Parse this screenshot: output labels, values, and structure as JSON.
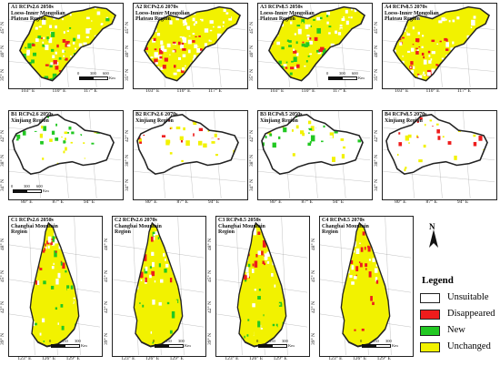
{
  "colors": {
    "unsuitable": "#ffffff",
    "disappeared": "#ee1c1c",
    "new": "#22c822",
    "unchanged": "#f2f200",
    "outline": "#222222"
  },
  "row_a": {
    "lat_labels": [
      "45° N",
      "40° N",
      "35° N"
    ],
    "lon_labels": [
      "103° E",
      "110° E",
      "117° E"
    ],
    "region": "Loess-Inner Mongolian Plateau Region",
    "panels": [
      {
        "id": "A1",
        "scenario": "RCPs2.6 2050s",
        "region_line1": "Loess-Inner Mongolian",
        "region_line2": "Plateau Region",
        "scale_labels": [
          "0",
          "300",
          "600"
        ],
        "scale_unit": "Km"
      },
      {
        "id": "A2",
        "scenario": "RCPs2.6 2070s",
        "region_line1": "Loess-Inner Mongolian",
        "region_line2": "Plateau Region"
      },
      {
        "id": "A3",
        "scenario": "RCPs8.5 2050s",
        "region_line1": "Loess-Inner Mongolian",
        "region_line2": "Plateau Region",
        "scale_labels": [
          "0",
          "300",
          "600"
        ],
        "scale_unit": "Km"
      },
      {
        "id": "A4",
        "scenario": "RCPs8.5 2070s",
        "region_line1": "Loess-Inner Mongolian",
        "region_line2": "Plateau Region"
      }
    ]
  },
  "row_b": {
    "lat_labels": [
      "42° N",
      "38° N",
      "34° N"
    ],
    "lon_labels": [
      "80° E",
      "87° E",
      "94° E"
    ],
    "panels": [
      {
        "id": "B1",
        "scenario": "RCPs2.6 2050s",
        "region_line1": "Xinjiang Region",
        "scale_labels": [
          "0",
          "300",
          "600"
        ],
        "scale_unit": "Km"
      },
      {
        "id": "B2",
        "scenario": "RCPs2.6 2070s",
        "region_line1": "Xinjiang Region"
      },
      {
        "id": "B3",
        "scenario": "RCPs8.5 2050s",
        "region_line1": "Xinjiang Region"
      },
      {
        "id": "B4",
        "scenario": "RCPs8.5 2070s",
        "region_line1": "Xinjiang Region"
      }
    ]
  },
  "row_c": {
    "lat_labels": [
      "48° N",
      "45° N",
      "42° N",
      "39° N"
    ],
    "lon_labels": [
      "123° E",
      "126° E",
      "129° E"
    ],
    "panels": [
      {
        "id": "C1",
        "scenario": "RCPs2.6 2050s",
        "region_line1": "Changbai Mountain",
        "region_line2": "Region",
        "scale_labels": [
          "0",
          "150",
          "300"
        ],
        "scale_unit": "Km"
      },
      {
        "id": "C2",
        "scenario": "RCPs2.6 2070s",
        "region_line1": "Changbai Mountain",
        "region_line2": "Region",
        "scale_labels": [
          "0",
          "150",
          "300"
        ],
        "scale_unit": "Km"
      },
      {
        "id": "C3",
        "scenario": "RCPs8.5 2050s",
        "region_line1": "Changbai Mountain",
        "region_line2": "Region",
        "scale_labels": [
          "0",
          "150",
          "300"
        ],
        "scale_unit": "Km"
      },
      {
        "id": "C4",
        "scenario": "RCPs8.5 2070s",
        "region_line1": "Changbai Mountain",
        "region_line2": "Region",
        "scale_labels": [
          "0",
          "150",
          "300"
        ],
        "scale_unit": "Km"
      }
    ]
  },
  "legend": {
    "north": "N",
    "title": "Legend",
    "items": [
      {
        "label": "Unsuitable",
        "color": "#ffffff"
      },
      {
        "label": "Disappeared",
        "color": "#ee1c1c"
      },
      {
        "label": "New",
        "color": "#22c822"
      },
      {
        "label": "Unchanged",
        "color": "#f2f200"
      }
    ]
  }
}
